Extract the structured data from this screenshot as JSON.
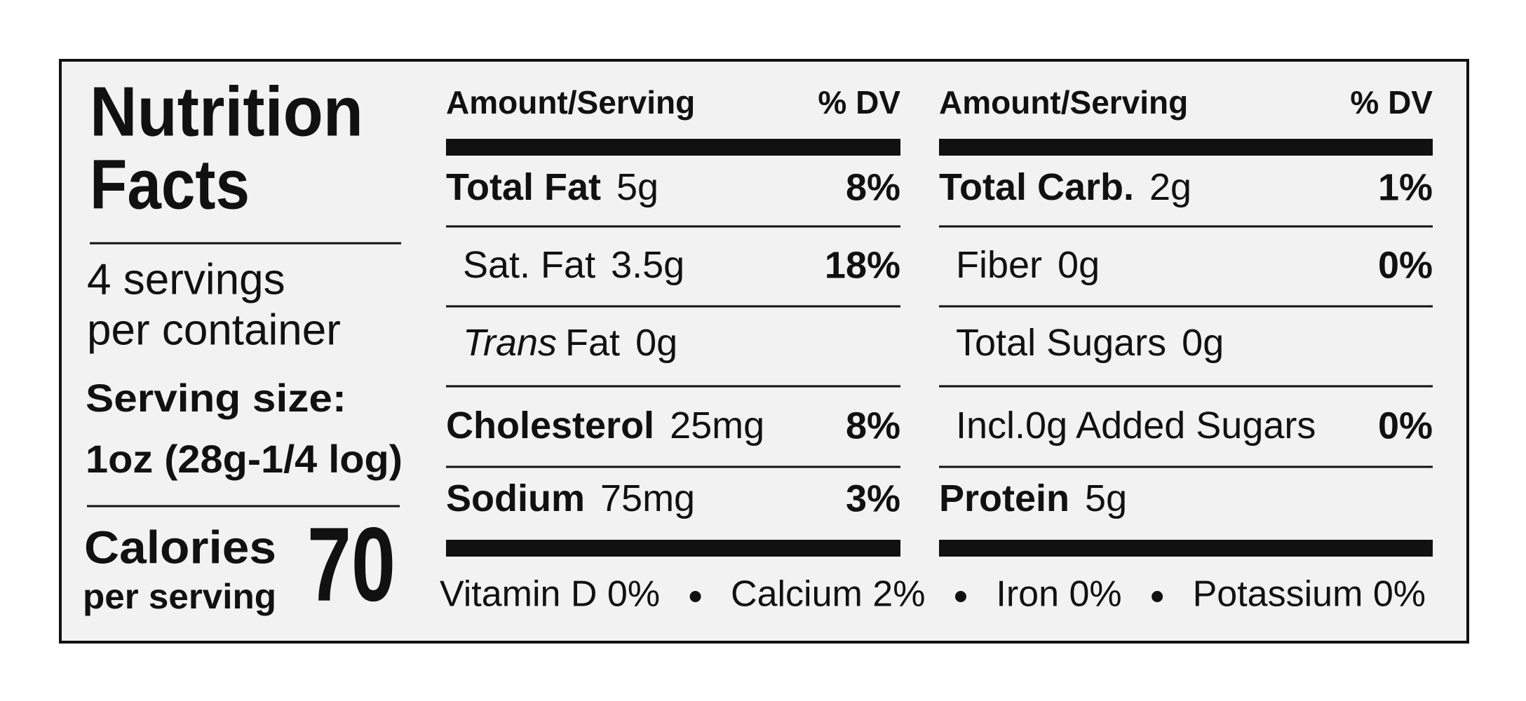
{
  "title_lines": [
    "Nutrition",
    "Facts"
  ],
  "servings": [
    "4 servings",
    "per container"
  ],
  "serving_size": {
    "label": "Serving size:",
    "value": "1oz (28g-1/4 log)"
  },
  "calories": {
    "label": "Calories",
    "sublabel": "per serving",
    "value": 70
  },
  "columns": [
    {
      "header": {
        "amount": "Amount/Serving",
        "dv": "% DV"
      },
      "rows": [
        {
          "name": "Total Fat",
          "amount": "5g",
          "dv": "8%"
        },
        {
          "name": "Sat. Fat",
          "amount": "3.5g",
          "dv": "18%"
        },
        {
          "name_italic": "Trans",
          "name": "Fat",
          "amount": "0g"
        },
        {
          "name": "Cholesterol",
          "amount": "25mg",
          "dv": "8%"
        },
        {
          "name": "Sodium",
          "amount": "75mg",
          "dv": "3%"
        }
      ]
    },
    {
      "header": {
        "amount": "Amount/Serving",
        "dv": "% DV"
      },
      "rows": [
        {
          "name": "Total Carb.",
          "amount": "2g",
          "dv": "1%"
        },
        {
          "name": "Fiber",
          "amount": "0g",
          "dv": "0%"
        },
        {
          "name": "Total Sugars",
          "amount": "0g"
        },
        {
          "name": "Incl.0g Added Sugars",
          "dv": "0%"
        },
        {
          "name": "Protein",
          "amount": "5g"
        }
      ]
    }
  ],
  "vitamins": [
    "Vitamin D 0%",
    "Calcium 2%",
    "Iron 0%",
    "Potassium 0%"
  ]
}
